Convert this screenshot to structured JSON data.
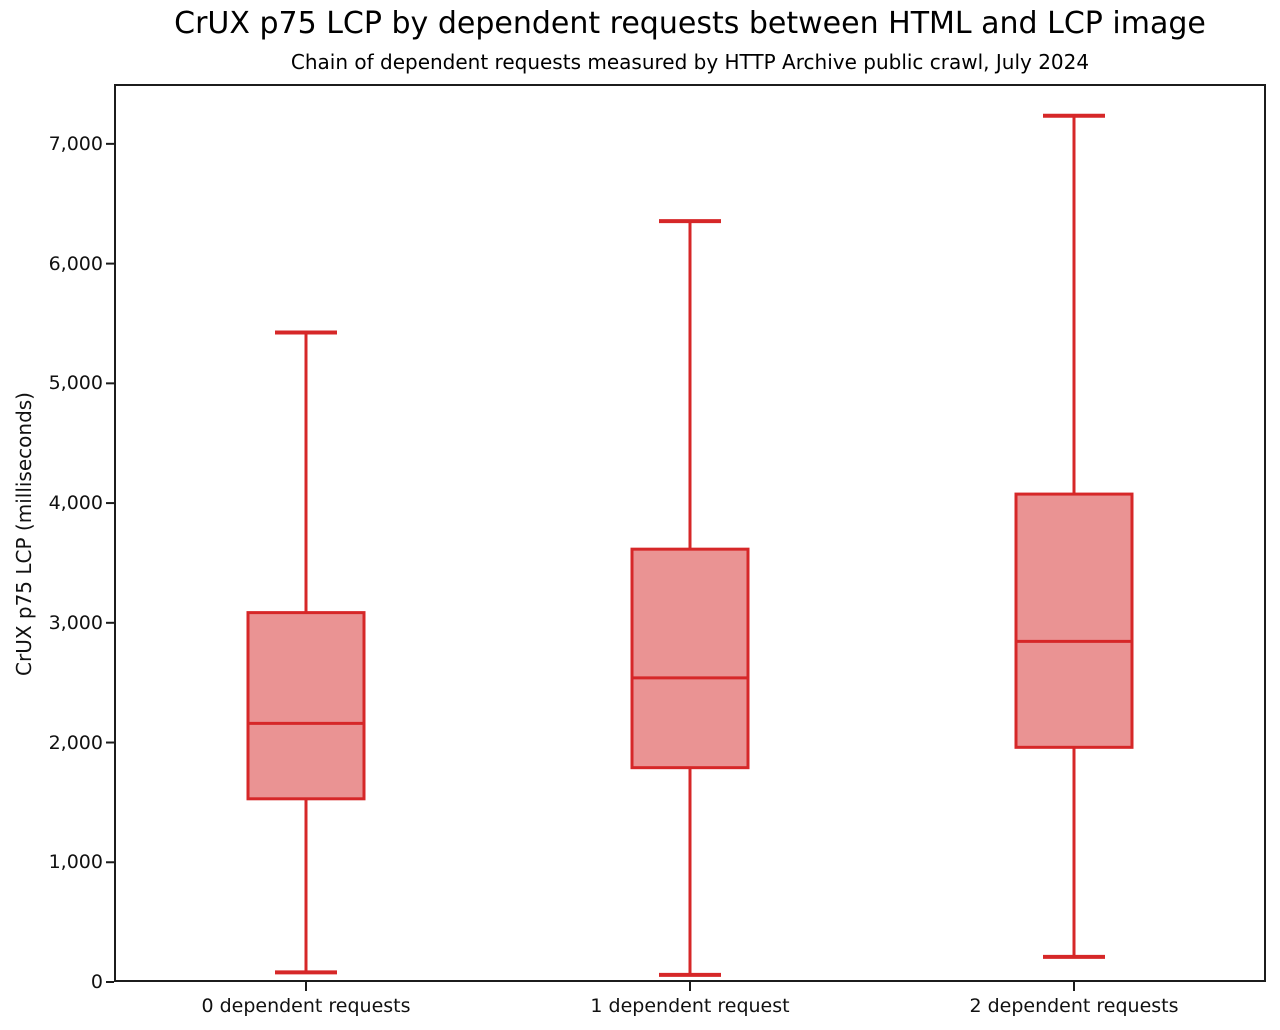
{
  "chart_data": {
    "type": "boxplot",
    "title": "CrUX p75 LCP by dependent requests between HTML and LCP image",
    "subtitle": "Chain of dependent requests measured by HTTP Archive public crawl, July 2024",
    "xlabel": "",
    "ylabel": "CrUX p75 LCP (milliseconds)",
    "ylim": [
      0,
      7500
    ],
    "grid": false,
    "legend": null,
    "yticks": [
      {
        "value": 0,
        "label": "0"
      },
      {
        "value": 1000,
        "label": "1,000"
      },
      {
        "value": 2000,
        "label": "2,000"
      },
      {
        "value": 3000,
        "label": "3,000"
      },
      {
        "value": 4000,
        "label": "4,000"
      },
      {
        "value": 5000,
        "label": "5,000"
      },
      {
        "value": 6000,
        "label": "6,000"
      },
      {
        "value": 7000,
        "label": "7,000"
      }
    ],
    "categories": [
      "0 dependent requests",
      "1 dependent request",
      "2 dependent requests"
    ],
    "series": [
      {
        "name": "0 dependent requests",
        "whisker_low": 80,
        "q1": 1530,
        "median": 2160,
        "q3": 3085,
        "whisker_high": 5425
      },
      {
        "name": "1 dependent request",
        "whisker_low": 60,
        "q1": 1790,
        "median": 2540,
        "q3": 3615,
        "whisker_high": 6355
      },
      {
        "name": "2 dependent requests",
        "whisker_low": 210,
        "q1": 1960,
        "median": 2845,
        "q3": 4075,
        "whisker_high": 7235
      }
    ],
    "colors": {
      "box_border": "#d62728",
      "box_fill": "#ea9393",
      "median": "#d62728",
      "whisker": "#d62728",
      "axis": "#1c1c1c",
      "text": "#111111"
    }
  }
}
